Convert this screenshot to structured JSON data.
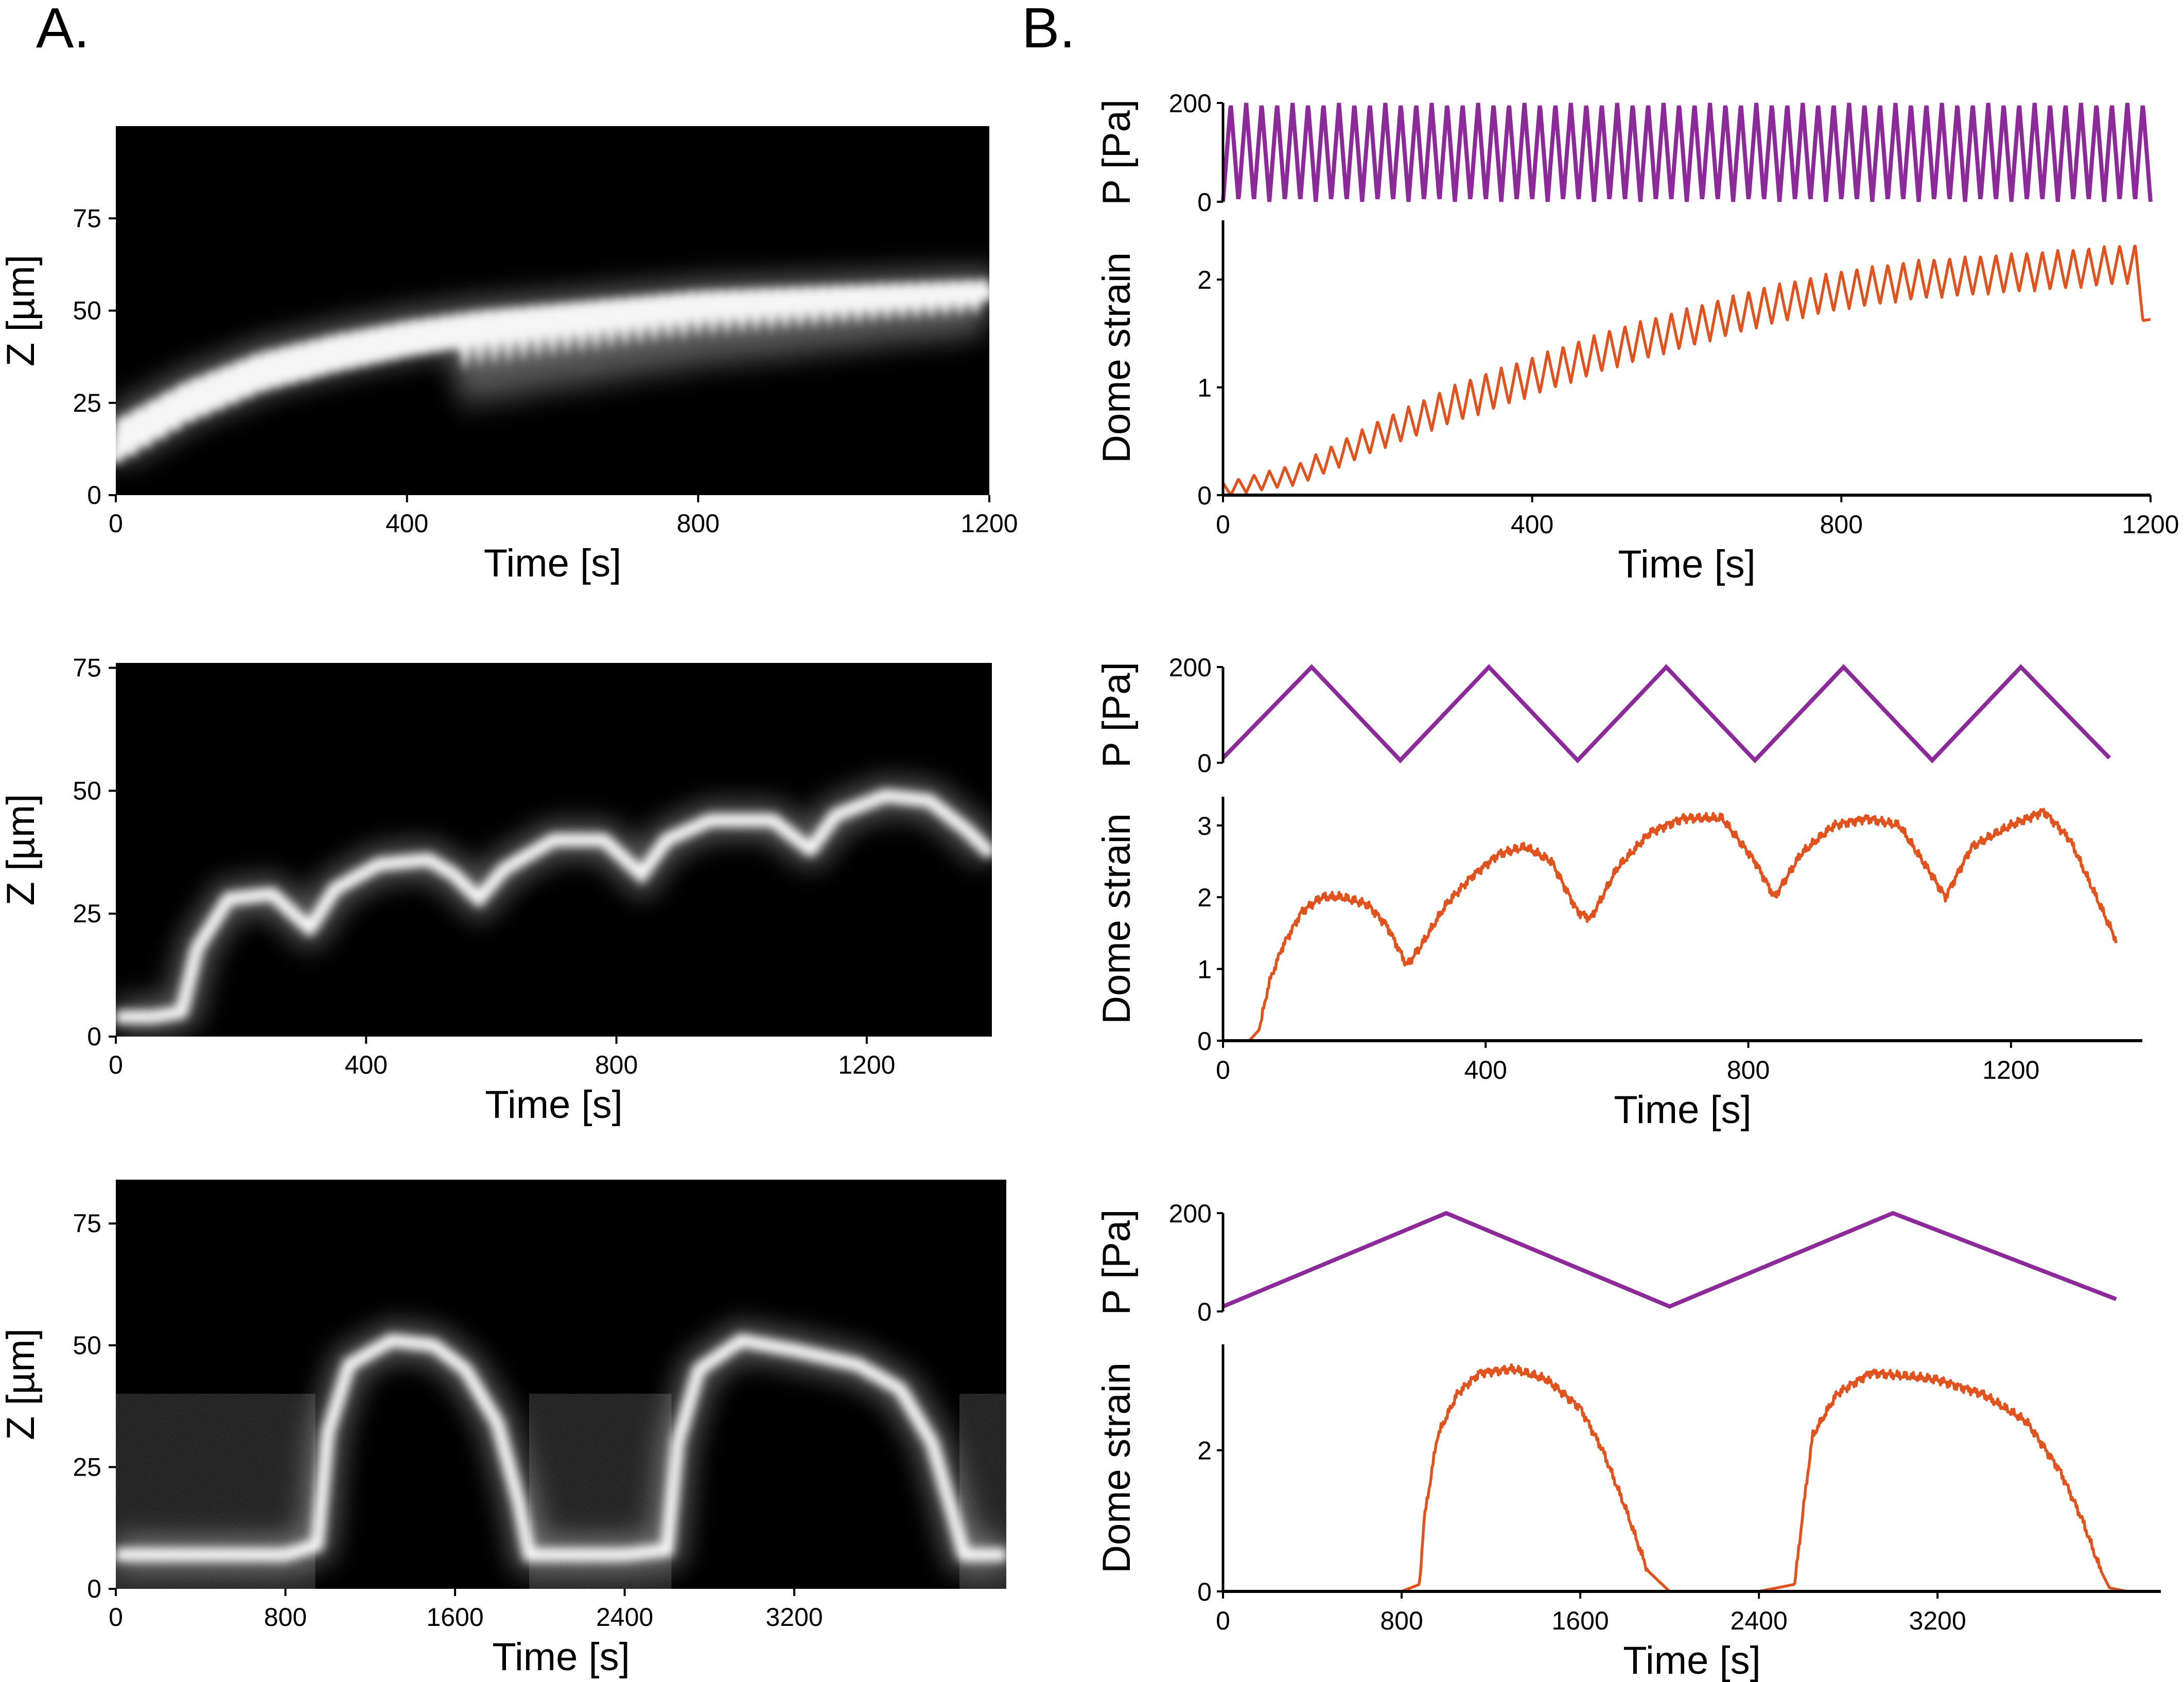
{
  "panel_labels": [
    "A.",
    "B."
  ],
  "colors": {
    "pressure": "#8B2A98",
    "strain": "#E0531E",
    "kymo_bg": "#000000",
    "kymo_signal": "#ffffff",
    "axis": "#000000"
  },
  "chart_data": [
    {
      "type": "heatmap",
      "panel": "A",
      "row": 1,
      "description_of_signal": "bright band rising with small oscillations",
      "xlabel": "Time [s]",
      "ylabel": "Z [µm]",
      "xlim": [
        0,
        1200
      ],
      "ylim": [
        0,
        100
      ],
      "xticks": [
        0,
        400,
        800,
        1200
      ],
      "yticks": [
        0,
        25,
        50,
        75
      ],
      "xtick_labels": [
        "0",
        "400",
        "800",
        "1200"
      ],
      "ytick_labels": [
        "0",
        "25",
        "50",
        "75"
      ],
      "period": 20,
      "band": {
        "t": [
          0,
          100,
          200,
          300,
          400,
          500,
          600,
          700,
          800,
          900,
          1000,
          1100,
          1200
        ],
        "z": [
          14,
          25,
          33,
          38,
          42,
          45,
          47,
          49,
          51,
          52,
          53,
          54,
          55
        ]
      }
    },
    {
      "type": "heatmap",
      "panel": "A",
      "row": 2,
      "xlabel": "Time [s]",
      "ylabel": "Z [µm]",
      "xlim": [
        0,
        1400
      ],
      "ylim": [
        0,
        76
      ],
      "xticks": [
        0,
        400,
        800,
        1200
      ],
      "yticks": [
        0,
        25,
        50,
        75
      ],
      "xtick_labels": [
        "0",
        "400",
        "800",
        "1200"
      ],
      "ytick_labels": [
        "0",
        "25",
        "50",
        "75"
      ],
      "band": {
        "t": [
          0,
          60,
          105,
          130,
          180,
          250,
          310,
          350,
          420,
          500,
          540,
          580,
          620,
          700,
          780,
          840,
          880,
          950,
          1050,
          1110,
          1150,
          1230,
          1300,
          1360,
          1400
        ],
        "z": [
          4,
          4,
          5,
          18,
          28,
          29,
          22,
          30,
          35,
          36,
          33,
          28,
          34,
          40,
          40,
          33,
          40,
          44,
          44,
          38,
          45,
          49,
          48,
          42,
          37
        ]
      }
    },
    {
      "type": "heatmap",
      "panel": "A",
      "row": 3,
      "xlabel": "Time [s]",
      "ylabel": "Z [µm]",
      "xlim": [
        0,
        4200
      ],
      "ylim": [
        0,
        84
      ],
      "xticks": [
        0,
        800,
        1600,
        2400,
        3200
      ],
      "yticks": [
        0,
        25,
        50,
        75
      ],
      "xtick_labels": [
        "0",
        "800",
        "1600",
        "2400",
        "3200"
      ],
      "ytick_labels": [
        "0",
        "25",
        "50",
        "75"
      ],
      "band": {
        "t": [
          0,
          200,
          500,
          800,
          950,
          1000,
          1100,
          1300,
          1500,
          1650,
          1800,
          1900,
          1950,
          2200,
          2400,
          2600,
          2650,
          2750,
          2950,
          3200,
          3500,
          3700,
          3850,
          3950,
          4000,
          4150,
          4200
        ],
        "z": [
          7,
          7,
          7,
          7,
          9,
          32,
          46,
          51,
          50,
          45,
          34,
          18,
          7,
          7,
          7,
          8,
          30,
          45,
          51,
          49,
          46,
          41,
          30,
          15,
          7,
          7,
          7
        ]
      }
    },
    {
      "type": "line",
      "panel": "B",
      "row": 1,
      "series": [
        {
          "name": "P [Pa]",
          "role": "pressure",
          "ylim": [
            0,
            200
          ],
          "yticks": [
            0,
            200
          ],
          "ytick_labels": [
            "0",
            "200"
          ],
          "period": 20,
          "min": 0,
          "max": 200
        },
        {
          "name": "Dome strain",
          "role": "strain",
          "ylim": [
            0,
            2.55
          ],
          "yticks": [
            0,
            1,
            2
          ],
          "ytick_labels": [
            "0",
            "1",
            "2"
          ],
          "trend": {
            "t": [
              0,
              100,
              200,
              300,
              400,
              500,
              600,
              700,
              800,
              900,
              1000,
              1100,
              1180,
              1200
            ],
            "v": [
              0.05,
              0.2,
              0.55,
              0.85,
              1.1,
              1.35,
              1.55,
              1.75,
              1.9,
              2.0,
              2.05,
              2.1,
              2.15,
              1.45
            ]
          },
          "oscillation_amplitude": 0.18
        }
      ],
      "xlabel": "Time [s]",
      "xlim": [
        0,
        1200
      ],
      "xticks": [
        0,
        400,
        800,
        1200
      ],
      "xtick_labels": [
        "0",
        "400",
        "800",
        "1200"
      ]
    },
    {
      "type": "line",
      "panel": "B",
      "row": 2,
      "series": [
        {
          "name": "P [Pa]",
          "role": "pressure",
          "ylim": [
            0,
            200
          ],
          "yticks": [
            0,
            200
          ],
          "ytick_labels": [
            "0",
            "200"
          ],
          "x": [
            0,
            135,
            270,
            405,
            540,
            675,
            810,
            945,
            1080,
            1215,
            1350
          ],
          "y": [
            10,
            200,
            5,
            200,
            5,
            200,
            5,
            200,
            5,
            200,
            10
          ]
        },
        {
          "name": "Dome strain",
          "role": "strain",
          "ylim": [
            0,
            3.4
          ],
          "yticks": [
            0,
            1,
            2,
            3
          ],
          "ytick_labels": [
            "0",
            "1",
            "2",
            "3"
          ],
          "x": [
            0,
            40,
            55,
            70,
            90,
            120,
            150,
            180,
            220,
            250,
            280,
            300,
            340,
            380,
            420,
            460,
            500,
            540,
            560,
            600,
            650,
            700,
            760,
            810,
            840,
            880,
            930,
            980,
            1030,
            1080,
            1100,
            1140,
            1200,
            1250,
            1290,
            1330,
            1360
          ],
          "y": [
            0,
            0,
            0.15,
            0.8,
            1.3,
            1.8,
            2.0,
            2.0,
            1.9,
            1.6,
            1.05,
            1.3,
            1.9,
            2.3,
            2.6,
            2.7,
            2.5,
            1.8,
            1.7,
            2.4,
            2.9,
            3.1,
            3.1,
            2.5,
            2.0,
            2.6,
            3.0,
            3.1,
            3.0,
            2.3,
            2.0,
            2.7,
            3.0,
            3.2,
            2.8,
            2.0,
            1.4
          ]
        }
      ],
      "xlabel": "Time [s]",
      "xlim": [
        0,
        1400
      ],
      "xticks": [
        0,
        400,
        800,
        1200
      ],
      "xtick_labels": [
        "0",
        "400",
        "800",
        "1200"
      ]
    },
    {
      "type": "line",
      "panel": "B",
      "row": 3,
      "series": [
        {
          "name": "P [Pa]",
          "role": "pressure",
          "ylim": [
            0,
            200
          ],
          "yticks": [
            0,
            200
          ],
          "ytick_labels": [
            "0",
            "200"
          ],
          "x": [
            0,
            1000,
            2000,
            3000,
            4000
          ],
          "y": [
            10,
            200,
            10,
            200,
            25
          ]
        },
        {
          "name": "Dome strain",
          "role": "strain",
          "ylim": [
            0,
            3.5
          ],
          "yticks": [
            0,
            2
          ],
          "ytick_labels": [
            "0",
            "2"
          ],
          "x": [
            0,
            800,
            880,
            900,
            960,
            1050,
            1150,
            1300,
            1450,
            1600,
            1700,
            1800,
            1900,
            2000,
            2400,
            2560,
            2600,
            2640,
            2750,
            2900,
            3050,
            3200,
            3400,
            3600,
            3750,
            3850,
            3930,
            3970,
            4050
          ],
          "y": [
            0,
            0,
            0.1,
            1.0,
            2.2,
            2.8,
            3.1,
            3.15,
            3.0,
            2.6,
            2.0,
            1.2,
            0.3,
            0,
            0,
            0.1,
            1.2,
            2.2,
            2.8,
            3.1,
            3.05,
            3.0,
            2.8,
            2.4,
            1.7,
            1.0,
            0.3,
            0.05,
            0
          ]
        }
      ],
      "xlabel": "Time [s]",
      "xlim": [
        0,
        4200
      ],
      "xticks": [
        0,
        800,
        1600,
        2400,
        3200
      ],
      "xtick_labels": [
        "0",
        "800",
        "1600",
        "2400",
        "3200"
      ]
    }
  ]
}
